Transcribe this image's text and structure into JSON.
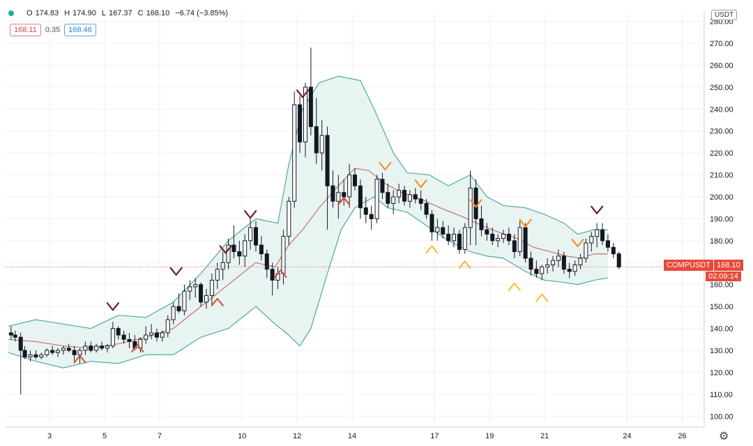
{
  "legend": {
    "o_label": "O",
    "o": "174.83",
    "h_label": "H",
    "h": "174.90",
    "l_label": "L",
    "l": "167.37",
    "c_label": "C",
    "c": "168.10",
    "change": "−6.74 (−3.85%)"
  },
  "bollinger": {
    "upper": "168.11",
    "mid": "0.35",
    "lower": "168.46"
  },
  "currency": "USDT",
  "last_price": {
    "symbol": "COMPUSDT",
    "value": "168.10",
    "countdown": "02:09:14"
  },
  "colors": {
    "up": "#ffffff",
    "down": "#131722",
    "band_fill": "#e8f4f2",
    "band_line": "#4fa99f",
    "basis": "#c0736e",
    "last_price": "#e8483a"
  },
  "chart_data": {
    "type": "candlestick",
    "ylim": [
      95,
      284
    ],
    "xlim": [
      1.4,
      26.8
    ],
    "y_ticks": [
      "100.00",
      "110.00",
      "120.00",
      "130.00",
      "140.00",
      "150.00",
      "160.00",
      "170.00",
      "180.00",
      "190.00",
      "200.00",
      "210.00",
      "220.00",
      "230.00",
      "240.00",
      "250.00",
      "260.00",
      "270.00",
      "280.00"
    ],
    "x_ticks": [
      "3",
      "5",
      "7",
      "10",
      "12",
      "14",
      "17",
      "19",
      "21",
      "24",
      "26"
    ],
    "x_tick_days": [
      3,
      5,
      7,
      10,
      12,
      14,
      17,
      19,
      21,
      24,
      26
    ],
    "ohlc": [
      [
        1.6,
        138,
        141,
        135,
        137
      ],
      [
        1.75,
        137,
        139,
        134,
        136
      ],
      [
        1.95,
        136,
        138,
        110,
        130
      ],
      [
        2.1,
        130,
        132,
        126,
        127
      ],
      [
        2.3,
        127,
        130,
        125,
        128
      ],
      [
        2.5,
        128,
        130,
        126,
        127
      ],
      [
        2.7,
        127,
        129,
        126,
        128
      ],
      [
        2.9,
        128,
        131,
        127,
        130
      ],
      [
        3.1,
        130,
        132,
        128,
        129
      ],
      [
        3.3,
        129,
        131,
        127,
        130
      ],
      [
        3.5,
        130,
        132,
        128,
        131
      ],
      [
        3.7,
        131,
        133,
        129,
        130
      ],
      [
        3.9,
        130,
        132,
        125,
        128
      ],
      [
        4.1,
        128,
        131,
        124,
        130
      ],
      [
        4.3,
        130,
        134,
        128,
        132
      ],
      [
        4.5,
        132,
        134,
        129,
        130
      ],
      [
        4.7,
        130,
        133,
        129,
        132
      ],
      [
        4.9,
        132,
        134,
        130,
        131
      ],
      [
        5.1,
        131,
        133,
        129,
        132
      ],
      [
        5.3,
        132,
        143,
        131,
        140
      ],
      [
        5.5,
        140,
        141,
        135,
        137
      ],
      [
        5.7,
        137,
        139,
        133,
        135
      ],
      [
        5.9,
        135,
        138,
        131,
        134
      ],
      [
        6.1,
        134,
        137,
        130,
        131
      ],
      [
        6.3,
        131,
        136,
        129,
        135
      ],
      [
        6.5,
        135,
        141,
        133,
        137
      ],
      [
        6.7,
        137,
        142,
        135,
        138
      ],
      [
        6.9,
        138,
        140,
        134,
        136
      ],
      [
        7.1,
        136,
        139,
        134,
        138
      ],
      [
        7.3,
        138,
        146,
        136,
        144
      ],
      [
        7.5,
        144,
        152,
        142,
        150
      ],
      [
        7.7,
        150,
        156,
        147,
        148
      ],
      [
        7.9,
        148,
        160,
        146,
        157
      ],
      [
        8.1,
        157,
        162,
        153,
        159
      ],
      [
        8.3,
        159,
        163,
        154,
        160
      ],
      [
        8.5,
        160,
        161,
        150,
        152
      ],
      [
        8.7,
        152,
        158,
        149,
        155
      ],
      [
        8.9,
        155,
        165,
        151,
        162
      ],
      [
        9.1,
        162,
        170,
        158,
        167
      ],
      [
        9.3,
        167,
        175,
        162,
        170
      ],
      [
        9.5,
        170,
        181,
        167,
        178
      ],
      [
        9.7,
        178,
        187,
        172,
        175
      ],
      [
        9.9,
        175,
        180,
        169,
        173
      ],
      [
        10.1,
        173,
        183,
        168,
        180
      ],
      [
        10.3,
        180,
        190,
        176,
        186
      ],
      [
        10.5,
        186,
        189,
        175,
        178
      ],
      [
        10.7,
        178,
        182,
        171,
        174
      ],
      [
        10.9,
        174,
        176,
        163,
        167
      ],
      [
        11.1,
        167,
        170,
        155,
        162
      ],
      [
        11.3,
        162,
        168,
        158,
        165
      ],
      [
        11.5,
        165,
        185,
        160,
        182
      ],
      [
        11.7,
        182,
        200,
        178,
        198
      ],
      [
        11.9,
        198,
        248,
        195,
        242
      ],
      [
        12.1,
        242,
        246,
        220,
        225
      ],
      [
        12.3,
        225,
        252,
        218,
        250
      ],
      [
        12.5,
        250,
        268,
        228,
        232
      ],
      [
        12.7,
        232,
        245,
        215,
        220
      ],
      [
        12.9,
        220,
        235,
        212,
        228
      ],
      [
        13.1,
        228,
        232,
        185,
        205
      ],
      [
        13.3,
        205,
        212,
        195,
        198
      ],
      [
        13.5,
        198,
        210,
        190,
        202
      ],
      [
        13.7,
        202,
        208,
        196,
        200
      ],
      [
        13.9,
        200,
        215,
        195,
        210
      ],
      [
        14.1,
        210,
        213,
        203,
        205
      ],
      [
        14.3,
        205,
        208,
        190,
        195
      ],
      [
        14.5,
        195,
        200,
        188,
        192
      ],
      [
        14.7,
        192,
        196,
        185,
        190
      ],
      [
        14.9,
        190,
        210,
        188,
        208
      ],
      [
        15.1,
        208,
        211,
        199,
        202
      ],
      [
        15.3,
        202,
        206,
        195,
        197
      ],
      [
        15.5,
        197,
        203,
        192,
        200
      ],
      [
        15.7,
        200,
        206,
        197,
        203
      ],
      [
        15.9,
        203,
        205,
        196,
        198
      ],
      [
        16.1,
        198,
        203,
        195,
        201
      ],
      [
        16.3,
        201,
        204,
        197,
        199
      ],
      [
        16.5,
        199,
        203,
        194,
        197
      ],
      [
        16.7,
        197,
        199,
        190,
        192
      ],
      [
        16.9,
        192,
        194,
        180,
        184
      ],
      [
        17.1,
        184,
        190,
        180,
        186
      ],
      [
        17.3,
        186,
        189,
        181,
        183
      ],
      [
        17.5,
        183,
        187,
        178,
        180
      ],
      [
        17.7,
        180,
        186,
        177,
        183
      ],
      [
        17.9,
        183,
        185,
        174,
        176
      ],
      [
        18.1,
        176,
        188,
        174,
        186
      ],
      [
        18.3,
        186,
        212,
        178,
        204
      ],
      [
        18.5,
        204,
        208,
        178,
        190
      ],
      [
        18.7,
        190,
        196,
        182,
        185
      ],
      [
        18.9,
        185,
        188,
        180,
        183
      ],
      [
        19.1,
        183,
        186,
        178,
        180
      ],
      [
        19.3,
        180,
        183,
        177,
        181
      ],
      [
        19.5,
        181,
        185,
        179,
        183
      ],
      [
        19.7,
        183,
        186,
        178,
        180
      ],
      [
        19.9,
        180,
        183,
        172,
        175
      ],
      [
        20.1,
        175,
        189,
        173,
        186
      ],
      [
        20.3,
        186,
        188,
        170,
        172
      ],
      [
        20.5,
        172,
        175,
        164,
        167
      ],
      [
        20.7,
        167,
        171,
        163,
        165
      ],
      [
        20.9,
        165,
        169,
        162,
        168
      ],
      [
        21.1,
        168,
        172,
        165,
        169
      ],
      [
        21.3,
        169,
        173,
        166,
        171
      ],
      [
        21.5,
        171,
        176,
        168,
        173
      ],
      [
        21.7,
        173,
        175,
        165,
        167
      ],
      [
        21.9,
        167,
        170,
        163,
        166
      ],
      [
        22.1,
        166,
        171,
        164,
        169
      ],
      [
        22.3,
        169,
        174,
        167,
        172
      ],
      [
        22.5,
        172,
        181,
        170,
        179
      ],
      [
        22.7,
        179,
        184,
        175,
        182
      ],
      [
        22.9,
        182,
        188,
        177,
        185
      ],
      [
        23.1,
        185,
        188,
        178,
        180
      ],
      [
        23.3,
        180,
        183,
        175,
        177
      ],
      [
        23.5,
        177,
        179,
        172,
        174
      ],
      [
        23.7,
        174,
        175,
        167,
        168
      ]
    ],
    "upper_band": [
      [
        1.5,
        141
      ],
      [
        2.5,
        144
      ],
      [
        3.5,
        142
      ],
      [
        4.5,
        140
      ],
      [
        5.5,
        146
      ],
      [
        6.5,
        145
      ],
      [
        7.5,
        152
      ],
      [
        8.5,
        165
      ],
      [
        9.5,
        180
      ],
      [
        10.5,
        190
      ],
      [
        11.3,
        188
      ],
      [
        11.7,
        215
      ],
      [
        12.2,
        240
      ],
      [
        12.8,
        252
      ],
      [
        13.5,
        255
      ],
      [
        14.3,
        253
      ],
      [
        14.8,
        240
      ],
      [
        15.5,
        220
      ],
      [
        16,
        211
      ],
      [
        16.8,
        210
      ],
      [
        17.5,
        205
      ],
      [
        18.3,
        210
      ],
      [
        18.9,
        200
      ],
      [
        19.5,
        196
      ],
      [
        20.3,
        195
      ],
      [
        21,
        192
      ],
      [
        21.7,
        188
      ],
      [
        22.2,
        183
      ],
      [
        22.8,
        185
      ],
      [
        23.3,
        185
      ]
    ],
    "lower_band": [
      [
        1.5,
        129
      ],
      [
        2.5,
        125
      ],
      [
        3.5,
        122
      ],
      [
        4.5,
        125
      ],
      [
        5.5,
        124
      ],
      [
        6.5,
        128
      ],
      [
        7.5,
        128
      ],
      [
        8.5,
        136
      ],
      [
        9.5,
        140
      ],
      [
        10.5,
        150
      ],
      [
        11.2,
        142
      ],
      [
        11.6,
        138
      ],
      [
        12.1,
        132
      ],
      [
        12.5,
        140
      ],
      [
        13.1,
        165
      ],
      [
        13.6,
        185
      ],
      [
        14.1,
        195
      ],
      [
        14.8,
        200
      ],
      [
        15.3,
        195
      ],
      [
        16,
        193
      ],
      [
        16.8,
        186
      ],
      [
        17.5,
        180
      ],
      [
        18.3,
        175
      ],
      [
        18.9,
        173
      ],
      [
        19.5,
        172
      ],
      [
        20.3,
        166
      ],
      [
        21,
        162
      ],
      [
        21.7,
        161
      ],
      [
        22.2,
        160
      ],
      [
        22.8,
        162
      ],
      [
        23.3,
        163
      ]
    ],
    "basis": [
      [
        1.5,
        135
      ],
      [
        2.5,
        134
      ],
      [
        3.5,
        132
      ],
      [
        4.5,
        131
      ],
      [
        5.5,
        133
      ],
      [
        6.5,
        136
      ],
      [
        7.5,
        140
      ],
      [
        8.5,
        150
      ],
      [
        9.5,
        160
      ],
      [
        10.5,
        170
      ],
      [
        11.2,
        168
      ],
      [
        11.7,
        178
      ],
      [
        12.2,
        185
      ],
      [
        12.8,
        195
      ],
      [
        13.5,
        205
      ],
      [
        14.1,
        213
      ],
      [
        14.6,
        212
      ],
      [
        15.2,
        206
      ],
      [
        15.8,
        202
      ],
      [
        16.5,
        199
      ],
      [
        17.2,
        195
      ],
      [
        18,
        191
      ],
      [
        18.7,
        187
      ],
      [
        19.3,
        184
      ],
      [
        20,
        181
      ],
      [
        20.6,
        177
      ],
      [
        21.2,
        175
      ],
      [
        21.8,
        173
      ],
      [
        22.3,
        172
      ],
      [
        22.8,
        174
      ],
      [
        23.3,
        174
      ]
    ],
    "markers": [
      {
        "x": 4.1,
        "y": 126,
        "dir": "up",
        "color": "#d9553a"
      },
      {
        "x": 5.3,
        "y": 150,
        "dir": "down",
        "color": "#6b1f1f"
      },
      {
        "x": 6.2,
        "y": 131,
        "dir": "up",
        "color": "#d9553a"
      },
      {
        "x": 7.6,
        "y": 166,
        "dir": "down",
        "color": "#6b1f1f"
      },
      {
        "x": 9.1,
        "y": 152,
        "dir": "up",
        "color": "#d9553a"
      },
      {
        "x": 9.4,
        "y": 176,
        "dir": "down",
        "color": "#6b1f1f"
      },
      {
        "x": 10.3,
        "y": 192,
        "dir": "down",
        "color": "#6b1f1f"
      },
      {
        "x": 11.4,
        "y": 165,
        "dir": "up",
        "color": "#d9553a"
      },
      {
        "x": 12.2,
        "y": 247,
        "dir": "down",
        "color": "#6b1f1f"
      },
      {
        "x": 13.7,
        "y": 198,
        "dir": "up",
        "color": "#d9553a"
      },
      {
        "x": 15.2,
        "y": 214,
        "dir": "down",
        "color": "#f0932b"
      },
      {
        "x": 16.5,
        "y": 206,
        "dir": "down",
        "color": "#f0932b"
      },
      {
        "x": 16.9,
        "y": 176,
        "dir": "up",
        "color": "#f5c242"
      },
      {
        "x": 18.1,
        "y": 169,
        "dir": "up",
        "color": "#f5c242"
      },
      {
        "x": 18.5,
        "y": 197,
        "dir": "down",
        "color": "#f0932b"
      },
      {
        "x": 19.9,
        "y": 159,
        "dir": "up",
        "color": "#f5c242"
      },
      {
        "x": 20.3,
        "y": 188,
        "dir": "down",
        "color": "#f0932b"
      },
      {
        "x": 20.9,
        "y": 154,
        "dir": "up",
        "color": "#f5c242"
      },
      {
        "x": 22.2,
        "y": 179,
        "dir": "down",
        "color": "#f0932b"
      },
      {
        "x": 22.9,
        "y": 194,
        "dir": "down",
        "color": "#6b1f1f"
      }
    ],
    "last_price": 168.1
  }
}
